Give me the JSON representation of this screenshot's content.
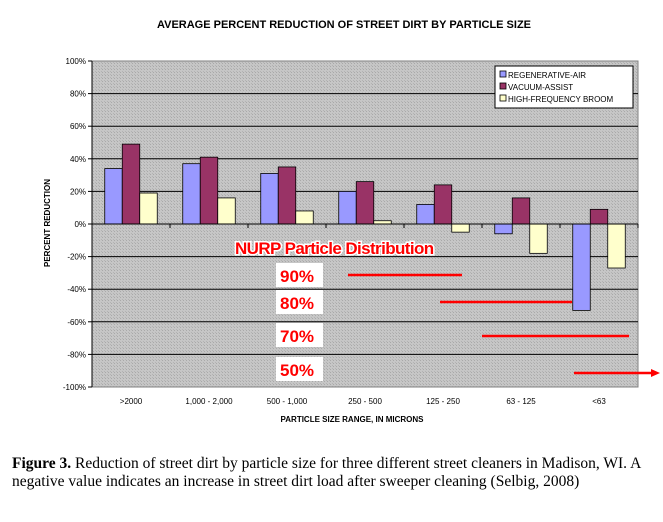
{
  "chart_data": {
    "type": "bar",
    "title": "AVERAGE PERCENT REDUCTION OF STREET DIRT BY PARTICLE SIZE",
    "xlabel": "PARTICLE SIZE RANGE, IN MICRONS",
    "ylabel": "PERCENT REDUCTION",
    "ylim": [
      -100,
      100
    ],
    "yticks": [
      -100,
      -80,
      -60,
      -40,
      -20,
      0,
      20,
      40,
      60,
      80,
      100
    ],
    "ytick_labels": [
      "-100%",
      "-80%",
      "-60%",
      "-40%",
      "-20%",
      "0%",
      "20%",
      "40%",
      "60%",
      "80%",
      "100%"
    ],
    "grid": true,
    "legend_position": "top-right",
    "categories": [
      ">2000",
      "1,000 - 2,000",
      "500 - 1,000",
      "250 - 500",
      "125 - 250",
      "63 - 125",
      "<63"
    ],
    "series": [
      {
        "name": "REGENERATIVE-AIR",
        "color": "#9999ff",
        "values": [
          34,
          37,
          31,
          20,
          12,
          -6,
          -53
        ]
      },
      {
        "name": "VACUUM-ASSIST",
        "color": "#993366",
        "values": [
          49,
          41,
          35,
          26,
          24,
          16,
          9
        ]
      },
      {
        "name": "HIGH-FREQUENCY BROOM",
        "color": "#ffffcc",
        "values": [
          19,
          16,
          8,
          2,
          -5,
          -18,
          -27
        ]
      }
    ],
    "annotation": {
      "title": "NURP Particle Distribution",
      "color": "#ff0000",
      "items": [
        {
          "label": "90%"
        },
        {
          "label": "80%"
        },
        {
          "label": "70%"
        },
        {
          "label": "50%"
        }
      ]
    }
  },
  "caption": {
    "label": "Figure 3.",
    "text": " Reduction of street dirt by particle size for three different street cleaners in Madison, WI. A negative value indicates an increase in street dirt load after sweeper cleaning (Selbig, 2008)"
  }
}
